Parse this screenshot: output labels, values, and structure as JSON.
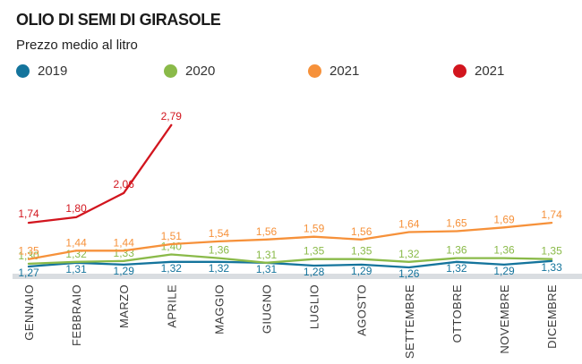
{
  "header": {
    "title": "OLIO DI SEMI DI GIRASOLE",
    "subtitle": "Prezzo medio al litro"
  },
  "legend": {
    "items": [
      {
        "label": "2019",
        "color": "#14749c"
      },
      {
        "label": "2020",
        "color": "#8aba49"
      },
      {
        "label": "2021",
        "color": "#f6913a"
      },
      {
        "label": "2021",
        "color": "#d2151e"
      }
    ]
  },
  "chart_data": {
    "type": "line",
    "title": "OLIO DI SEMI DI GIRASOLE",
    "subtitle": "Prezzo medio al litro",
    "categories": [
      "GENNAIO",
      "FEBBRAIO",
      "MARZO",
      "APRILE",
      "MAGGIO",
      "GIUGNO",
      "LUGLIO",
      "AGOSTO",
      "SETTEMBRE",
      "OTTOBRE",
      "NOVEMBRE",
      "DICEMBRE"
    ],
    "series": [
      {
        "name": "2019",
        "color": "#14749c",
        "values": [
          1.27,
          1.31,
          1.29,
          1.32,
          1.32,
          1.31,
          1.28,
          1.29,
          1.26,
          1.32,
          1.29,
          1.33
        ]
      },
      {
        "name": "2020",
        "color": "#8aba49",
        "values": [
          1.3,
          1.32,
          1.33,
          1.4,
          1.36,
          1.31,
          1.35,
          1.35,
          1.32,
          1.36,
          1.36,
          1.35
        ]
      },
      {
        "name": "2021",
        "color": "#f6913a",
        "values": [
          1.35,
          1.44,
          1.44,
          1.51,
          1.54,
          1.56,
          1.59,
          1.56,
          1.64,
          1.65,
          1.69,
          1.74
        ]
      },
      {
        "name": "2021",
        "color": "#d2151e",
        "values": [
          1.74,
          1.8,
          2.06,
          2.79,
          null,
          null,
          null,
          null,
          null,
          null,
          null,
          null
        ]
      }
    ],
    "ylim": [
      1.2,
      2.9
    ],
    "grid": false,
    "legend_position": "top",
    "value_labels": true,
    "decimal_separator": ",",
    "axis_band_color": "#d9dde1",
    "x_tick_rotation": -90
  }
}
